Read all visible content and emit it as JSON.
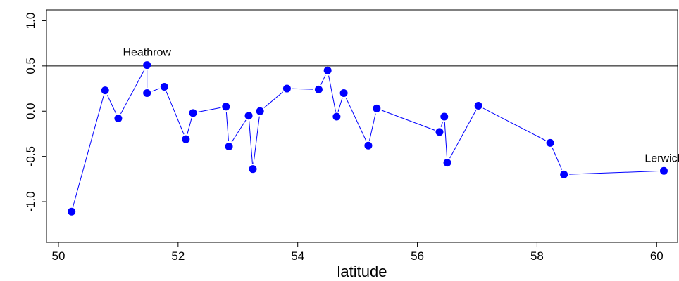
{
  "chart_data": {
    "type": "line",
    "xlabel": "latitude",
    "ylabel": "",
    "xlim": [
      49.8,
      60.35
    ],
    "ylim": [
      -1.45,
      1.12
    ],
    "x_ticks": [
      50,
      52,
      54,
      56,
      58,
      60
    ],
    "y_ticks": [
      -1.0,
      -0.5,
      0.0,
      0.5,
      1.0
    ],
    "x_tick_labels": [
      "50",
      "52",
      "54",
      "56",
      "58",
      "60"
    ],
    "y_tick_labels": [
      "-1.0",
      "-0.5",
      "0.0",
      "0.5",
      "1.0"
    ],
    "reference_line_y": 0.5,
    "series": [
      {
        "x": [
          50.22,
          50.78,
          51.0,
          51.48,
          51.48,
          51.77,
          52.13,
          52.25,
          52.8,
          52.85,
          53.18,
          53.25,
          53.37,
          53.82,
          54.35,
          54.5,
          54.65,
          54.77,
          55.18,
          55.32,
          56.37,
          56.45,
          56.5,
          57.02,
          58.22,
          58.45,
          60.12
        ],
        "y": [
          -1.11,
          0.23,
          -0.08,
          0.51,
          0.2,
          0.27,
          -0.31,
          -0.02,
          0.05,
          -0.39,
          -0.05,
          -0.64,
          0.0,
          0.25,
          0.24,
          0.45,
          -0.06,
          0.2,
          -0.38,
          0.03,
          -0.23,
          -0.06,
          -0.57,
          0.06,
          -0.35,
          -0.7,
          -0.66
        ],
        "color": "#0000ff"
      }
    ],
    "annotations": [
      {
        "text": "Heathrow",
        "x": 51.48,
        "y": 0.51
      },
      {
        "text": "Lerwick",
        "x": 60.12,
        "y": -0.66
      }
    ]
  }
}
